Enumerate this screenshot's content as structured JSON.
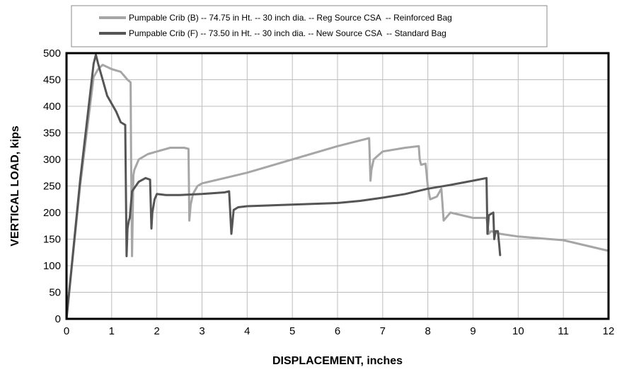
{
  "chart_data": {
    "type": "line",
    "title": "",
    "xlabel": "DISPLACEMENT, inches",
    "ylabel": "VERTICAL LOAD, kips",
    "xlim": [
      0,
      12
    ],
    "ylim": [
      0,
      500
    ],
    "xticks": [
      0,
      1,
      2,
      3,
      4,
      5,
      6,
      7,
      8,
      9,
      10,
      11,
      12
    ],
    "yticks": [
      0,
      50,
      100,
      150,
      200,
      250,
      300,
      350,
      400,
      450,
      500
    ],
    "grid": true,
    "legend_position": "top-center",
    "series": [
      {
        "name": "Pumpable Crib (B) -- 74.75 in Ht. -- 30 inch dia. -- Reg Source CSA  -- Reinforced Bag",
        "color": "#a6a6a6",
        "x": [
          0.0,
          0.3,
          0.6,
          0.7,
          0.8,
          1.0,
          1.2,
          1.35,
          1.42,
          1.43,
          1.45,
          1.48,
          1.5,
          1.6,
          1.8,
          2.0,
          2.3,
          2.6,
          2.7,
          2.72,
          2.75,
          2.8,
          2.9,
          3.0,
          3.5,
          4.0,
          5.0,
          6.0,
          6.7,
          6.73,
          6.75,
          6.8,
          7.0,
          7.5,
          7.8,
          7.82,
          7.85,
          7.95,
          8.0,
          8.05,
          8.2,
          8.3,
          8.35,
          8.5,
          9.0,
          9.3,
          9.35,
          9.4,
          9.6,
          10.0,
          11.0,
          12.0
        ],
        "y": [
          0,
          250,
          455,
          470,
          478,
          470,
          465,
          450,
          445,
          300,
          118,
          270,
          280,
          300,
          310,
          315,
          322,
          322,
          320,
          185,
          215,
          235,
          250,
          255,
          265,
          275,
          300,
          325,
          340,
          260,
          280,
          300,
          315,
          322,
          325,
          300,
          290,
          292,
          248,
          225,
          230,
          245,
          185,
          200,
          190,
          190,
          160,
          165,
          160,
          155,
          148,
          128
        ]
      },
      {
        "name": "Pumpable Crib (F) -- 73.50 in Ht. -- 30 inch dia. -- New Source CSA  -- Standard Bag",
        "color": "#555555",
        "x": [
          0.0,
          0.3,
          0.6,
          0.65,
          0.7,
          0.8,
          0.9,
          1.0,
          1.1,
          1.2,
          1.3,
          1.33,
          1.35,
          1.38,
          1.4,
          1.45,
          1.6,
          1.75,
          1.85,
          1.88,
          1.9,
          1.95,
          2.0,
          2.2,
          2.5,
          3.0,
          3.5,
          3.6,
          3.65,
          3.7,
          3.8,
          4.0,
          5.0,
          6.0,
          6.5,
          7.0,
          7.5,
          8.0,
          8.5,
          9.0,
          9.3,
          9.32,
          9.35,
          9.45,
          9.47,
          9.5,
          9.55,
          9.58,
          9.6
        ],
        "y": [
          0,
          260,
          480,
          497,
          480,
          450,
          420,
          405,
          390,
          370,
          365,
          118,
          170,
          185,
          190,
          240,
          258,
          265,
          262,
          170,
          200,
          225,
          235,
          233,
          233,
          235,
          238,
          240,
          160,
          205,
          210,
          212,
          215,
          218,
          222,
          228,
          235,
          245,
          252,
          260,
          265,
          160,
          195,
          200,
          150,
          165,
          165,
          140,
          120
        ]
      }
    ]
  }
}
